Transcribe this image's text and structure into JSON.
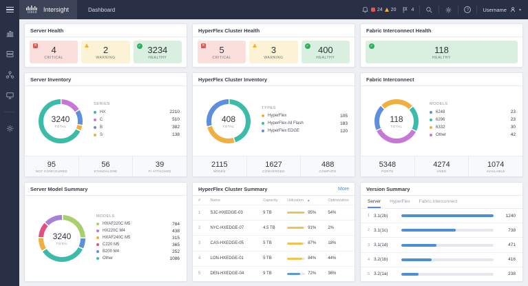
{
  "header": {
    "brand": {
      "logo_word": "cisco",
      "name": "Intersight"
    },
    "tab": "Dashboard",
    "alarms": {
      "critical_count": "24",
      "warning_count": "20",
      "advisory_count": "4"
    },
    "user": {
      "name": "Username"
    }
  },
  "cards": {
    "server_health": {
      "title": "Server Health",
      "stats": [
        {
          "value": "4",
          "label": "CRITICAL"
        },
        {
          "value": "2",
          "label": "WARNING"
        },
        {
          "value": "3234",
          "label": "HEALTHY"
        }
      ]
    },
    "hx_health": {
      "title": "HyperFlex Cluster Health",
      "stats": [
        {
          "value": "5",
          "label": "CRITICAL"
        },
        {
          "value": "3",
          "label": "WARNING"
        },
        {
          "value": "400",
          "label": "HEALTHY"
        }
      ]
    },
    "fi_health": {
      "title": "Fabric Interconnect Health",
      "stats": [
        {
          "value": "118",
          "label": "HEALTHY"
        }
      ]
    },
    "server_inventory": {
      "title": "Server Inventory",
      "legend_title": "SERIES",
      "donut": {
        "total": "3240",
        "total_label": "TOTAL",
        "start": 0,
        "arc_order": [
          1,
          2,
          3,
          0
        ],
        "segments": [
          {
            "label": "HX",
            "display": "2210",
            "value": 2210,
            "color": "#3bbcab"
          },
          {
            "label": "C",
            "display": "510",
            "value": 510,
            "color": "#c678d6"
          },
          {
            "label": "B",
            "display": "382",
            "value": 382,
            "color": "#5d8fdd"
          },
          {
            "label": "S",
            "display": "138",
            "value": 138,
            "color": "#efaf41"
          }
        ]
      },
      "footer": [
        {
          "value": "95",
          "label": "NOT CONFIGURED"
        },
        {
          "value": "56",
          "label": "STANDALONE"
        },
        {
          "value": "39",
          "label": "FI ATTACHED"
        }
      ]
    },
    "hx_inventory": {
      "title": "HyperFlex Cluster Inventory",
      "legend_title": "TYPES",
      "donut": {
        "total": "408",
        "total_label": "TOTAL",
        "start": 0,
        "arc_order": [
          1,
          0,
          2
        ],
        "segments": [
          {
            "label": "HyperFlex",
            "display": "105",
            "value": 105,
            "color": "#efaf41"
          },
          {
            "label": "HyperFlex All Flash",
            "display": "183",
            "value": 183,
            "color": "#3bbcab"
          },
          {
            "label": "HyperFlex EDGE",
            "display": "120",
            "value": 120,
            "color": "#5d8fdd"
          }
        ]
      },
      "footer": [
        {
          "value": "2115",
          "label": "NODES"
        },
        {
          "value": "1627",
          "label": "CONVERGED"
        },
        {
          "value": "488",
          "label": "COMPUTE"
        }
      ]
    },
    "fi_inventory": {
      "title": "Fabric Interconnect",
      "legend_title": "MODELS",
      "donut": {
        "total": "118",
        "total_label": "TOTAL",
        "start": -46,
        "arc_order": [
          2,
          1,
          3,
          0
        ],
        "segments": [
          {
            "label": "6248",
            "display": "23",
            "value": 23,
            "color": "#5d8fdd"
          },
          {
            "label": "6296",
            "display": "23",
            "value": 23,
            "color": "#3bbcab"
          },
          {
            "label": "6332",
            "display": "30",
            "value": 30,
            "color": "#efaf41"
          },
          {
            "label": "Other",
            "display": "42",
            "value": 42,
            "color": "#c678d6"
          }
        ]
      },
      "footer": [
        {
          "value": "5348",
          "label": "PORTS"
        },
        {
          "value": "4274",
          "label": "USED"
        },
        {
          "value": "1074",
          "label": "AVAILABLE"
        }
      ]
    },
    "server_model_summary": {
      "title": "Server Model Summary",
      "legend_title": "MODELS",
      "donut": {
        "total": "3240",
        "total_label": "TOTAL",
        "start": 0,
        "arc_order": [
          0,
          4,
          5,
          2,
          3,
          1
        ],
        "segments": [
          {
            "label": "HXAF220C M5",
            "display": "784",
            "value": 784,
            "color": "#a8cf6c"
          },
          {
            "label": "HX220C M4",
            "display": "438",
            "value": 438,
            "color": "#a87fd9"
          },
          {
            "label": "HXAF240C M5",
            "display": "315",
            "value": 315,
            "color": "#efaf41"
          },
          {
            "label": "C220 M5",
            "display": "365",
            "value": 365,
            "color": "#e2517e"
          },
          {
            "label": "B200 M4",
            "display": "252",
            "value": 252,
            "color": "#5d8fdd"
          },
          {
            "label": "Other",
            "display": "1086",
            "value": 1086,
            "color": "#3bbcab"
          }
        ]
      }
    },
    "hx_summary": {
      "title": "HyperFlex Cluster Summary",
      "more_label": "More",
      "columns": {
        "num": "#",
        "name": "Name",
        "capacity": "Capacity",
        "utilization": "Utilization",
        "sort_icon": "▴",
        "optimization": "Optimization"
      },
      "rows": [
        {
          "num": "1",
          "name": "SJC-HXEDGE-03",
          "capacity": "9 TB",
          "util_pct": 95,
          "util_label": "95%",
          "util_color": "#f2c14e",
          "opt": "54%"
        },
        {
          "num": "2",
          "name": "NYC-HXEDGE-07",
          "capacity": "4.5 TB",
          "util_pct": 91,
          "util_label": "91%",
          "util_color": "#f2c14e",
          "opt": "2%"
        },
        {
          "num": "3",
          "name": "CAS-HXEDGE-05",
          "capacity": "5 TB",
          "util_pct": 87,
          "util_label": "87%",
          "util_color": "#f2c14e",
          "opt": "18%"
        },
        {
          "num": "4",
          "name": "LON-HXEDGE-01",
          "capacity": "5 TB",
          "util_pct": 84,
          "util_label": "84%",
          "util_color": "#f2c14e",
          "opt": "44%"
        },
        {
          "num": "5",
          "name": "DEN-HXEDGE-04",
          "capacity": "9 TB",
          "util_pct": 72,
          "util_label": "72%",
          "util_color": "#5b9bd5",
          "opt": "36%"
        }
      ]
    },
    "version_summary": {
      "title": "Version Summary",
      "tabs": [
        "Server",
        "HyperFlex",
        "Fabric Interconnect"
      ],
      "bar_color": "#4a90d9",
      "rows": [
        {
          "num": "1",
          "version": "3.1(2b)",
          "pct": 100,
          "label": "1240"
        },
        {
          "num": "2",
          "version": "3.1(1c)",
          "pct": 59,
          "label": "738"
        },
        {
          "num": "3",
          "version": "3.1(1d)",
          "pct": 38,
          "label": "471"
        },
        {
          "num": "4",
          "version": "3.2(1b)",
          "pct": 33,
          "label": "416"
        },
        {
          "num": "5",
          "version": "3.2(1a)",
          "pct": 19,
          "label": "238"
        }
      ]
    }
  }
}
